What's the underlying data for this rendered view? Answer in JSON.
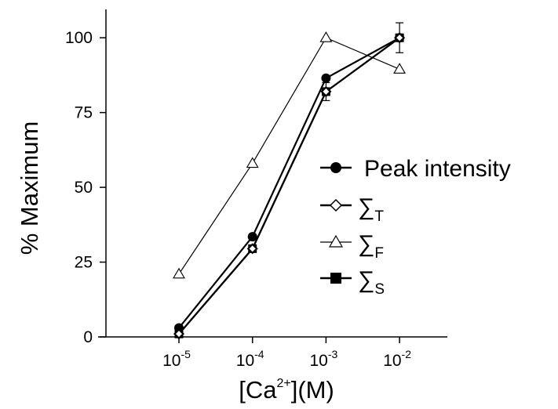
{
  "chart_data": {
    "type": "line",
    "x": [
      -5,
      -4,
      -3,
      -2
    ],
    "x_tick_labels": [
      {
        "base": "10",
        "exp": "-5"
      },
      {
        "base": "10",
        "exp": "-4"
      },
      {
        "base": "10",
        "exp": "-3"
      },
      {
        "base": "10",
        "exp": "-2"
      }
    ],
    "xlabel": {
      "prefix": "[Ca",
      "sup": "2+",
      "suffix": "](M)"
    },
    "ylabel": "% Maximum",
    "ylim": [
      0,
      110
    ],
    "y_ticks": [
      0,
      25,
      50,
      75,
      100
    ],
    "y_tick_labels": [
      "0",
      "25",
      "50",
      "75",
      "100"
    ],
    "grid": false,
    "legend_placement": "right",
    "series": [
      {
        "name": "Peak intensity",
        "marker": "filled-circle",
        "line": "thick",
        "values": [
          3,
          33.5,
          86.5,
          100
        ]
      },
      {
        "name": "∑",
        "sub": "T",
        "marker": "open-diamond",
        "line": "thick",
        "values": [
          1,
          29.5,
          82,
          100
        ]
      },
      {
        "name": "∑",
        "sub": "F",
        "marker": "open-triangle",
        "line": "thin",
        "values": [
          21,
          58,
          100,
          89.5
        ]
      },
      {
        "name": "∑",
        "sub": "S",
        "marker": "filled-square",
        "line": "thick",
        "values": [
          1,
          29.5,
          82,
          100
        ],
        "errors": [
          0,
          1,
          3,
          5
        ]
      }
    ]
  }
}
